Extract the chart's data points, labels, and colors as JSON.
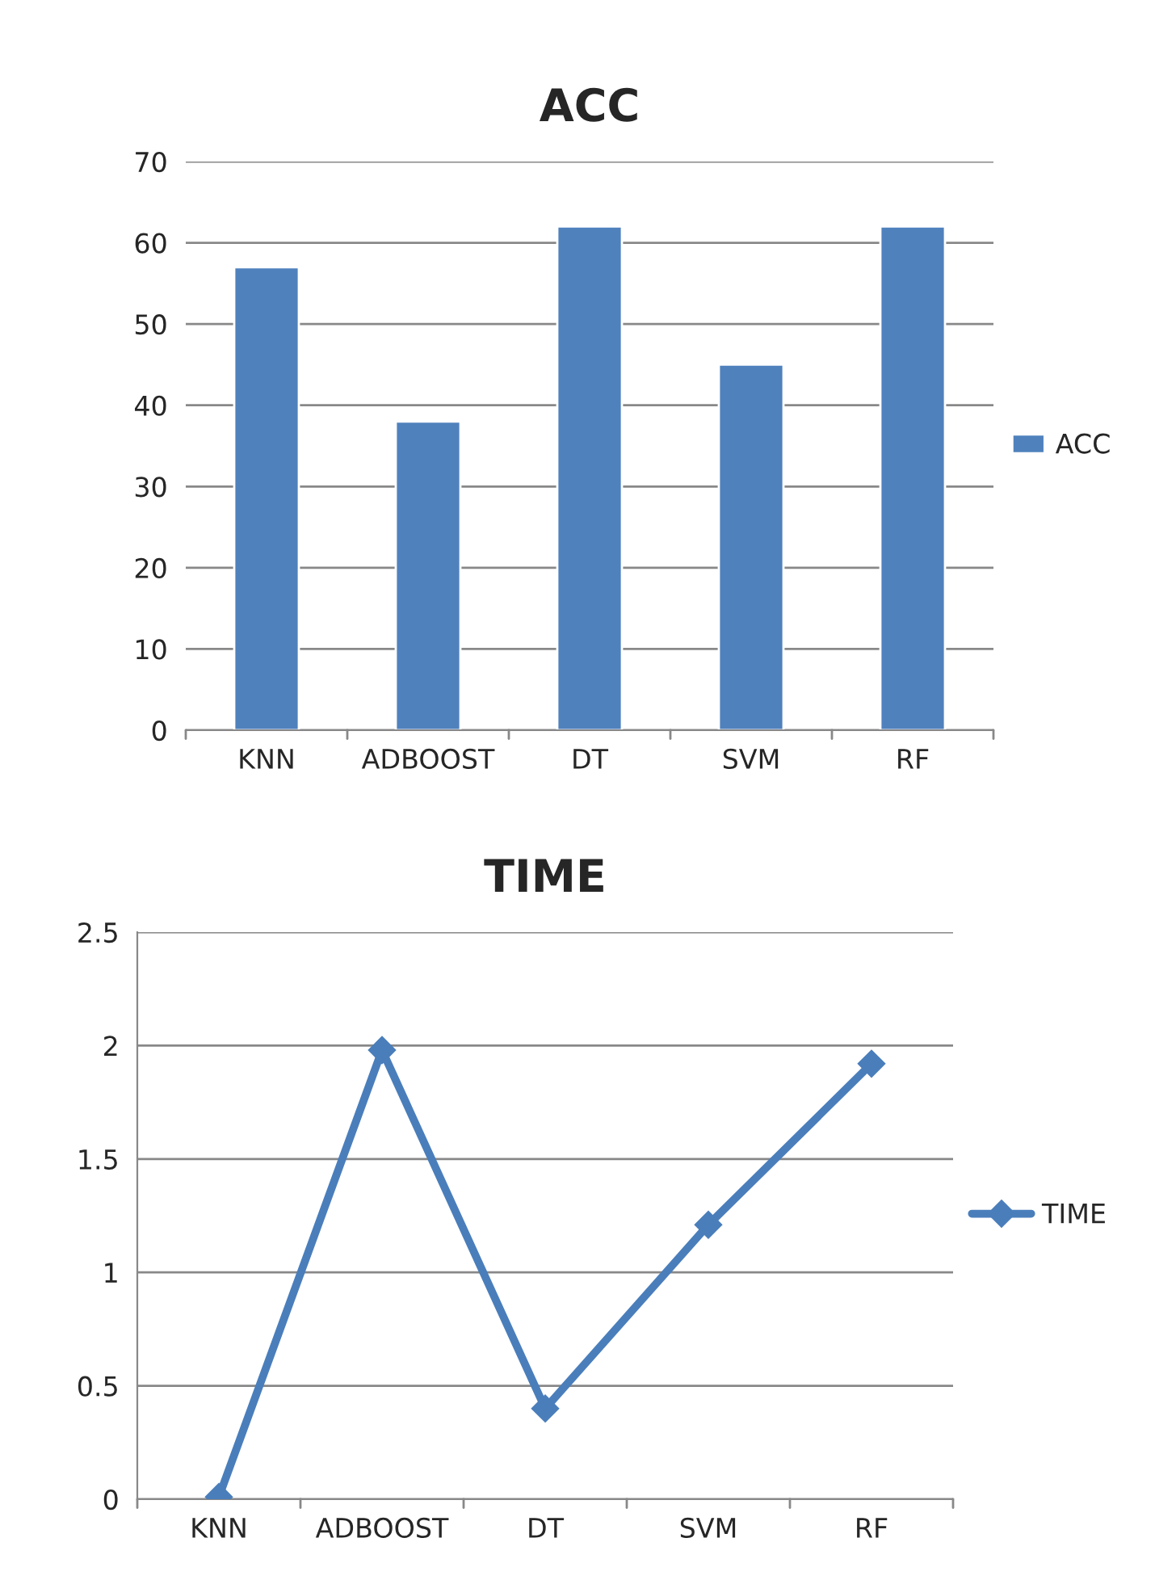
{
  "chart_data": [
    {
      "type": "bar",
      "title": "ACC",
      "categories": [
        "KNN",
        "ADBOOST",
        "DT",
        "SVM",
        "RF"
      ],
      "series": [
        {
          "name": "ACC",
          "color": "#4f81bd",
          "values": [
            57,
            38,
            62,
            45,
            62
          ]
        }
      ],
      "ylim": [
        0,
        70
      ],
      "yticks": [
        0,
        10,
        20,
        30,
        40,
        50,
        60,
        70
      ],
      "grid": "y",
      "legend": "right"
    },
    {
      "type": "line",
      "title": "TIME",
      "categories": [
        "KNN",
        "ADBOOST",
        "DT",
        "SVM",
        "RF"
      ],
      "series": [
        {
          "name": "TIME",
          "color": "#4a7ebb",
          "values": [
            0.01,
            1.98,
            0.4,
            1.21,
            1.92
          ]
        }
      ],
      "ylim": [
        0,
        2.5
      ],
      "yticks": [
        0,
        0.5,
        1,
        1.5,
        2,
        2.5
      ],
      "grid": "y",
      "legend": "right",
      "marker": "diamond",
      "line_style": "solid"
    }
  ]
}
